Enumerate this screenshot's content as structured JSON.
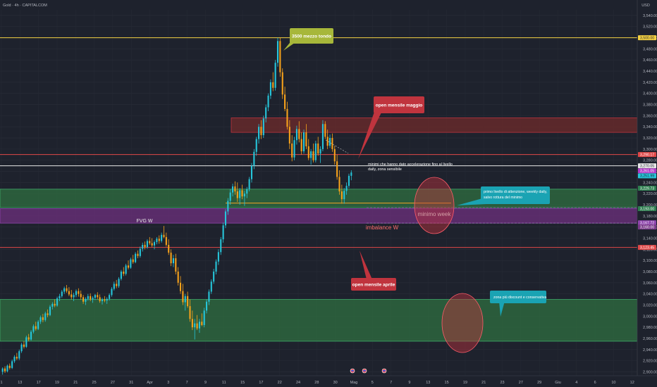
{
  "header": {
    "symbol": "Gold · 4h · CAPITALCOM",
    "currency": "USD"
  },
  "colors": {
    "background": "#1e222d",
    "up_candle": "#26c6da",
    "down_candle": "#f7a21b",
    "demand_zone": "#2e6b3f",
    "fvg_zone": "#6a2f7a",
    "supply_zone": "#6b2a2a",
    "yellow_level": "#f5d142",
    "red_level": "#e04848",
    "teal_callout": "#1aa3b3",
    "red_callout": "#c0343e",
    "olive_callout": "#a7b73a"
  },
  "chart_data": {
    "type": "candlestick",
    "symbol": "Gold",
    "timeframe": "4h",
    "y_axis": {
      "ticks": [
        3540,
        3520,
        3500,
        3480,
        3460,
        3440,
        3420,
        3400,
        3380,
        3360,
        3340,
        3320,
        3300,
        3280,
        3260,
        3240,
        3220,
        3200,
        3180,
        3160,
        3140,
        3120,
        3100,
        3080,
        3060,
        3040,
        3020,
        3000,
        2980,
        2960,
        2940,
        2920,
        2900
      ],
      "tick_labels": [
        "3,540.00",
        "3,520.00",
        "3,500.00",
        "3,480.00",
        "3,460.00",
        "3,440.00",
        "3,420.00",
        "3,400.00",
        "3,380.00",
        "3,360.00",
        "3,340.00",
        "3,320.00",
        "3,300.00",
        "3,280.00",
        "3,260.00",
        "3,240.00",
        "3,220.00",
        "3,200.00",
        "3,180.00",
        "3,160.00",
        "3,140.00",
        "3,120.00",
        "3,100.00",
        "3,080.00",
        "3,060.00",
        "3,040.00",
        "3,020.00",
        "3,000.00",
        "2,980.00",
        "2,960.00",
        "2,940.00",
        "2,920.00",
        "2,900.00"
      ],
      "range": [
        2893,
        3550
      ]
    },
    "x_axis": {
      "labels": [
        "1",
        "13",
        "17",
        "19",
        "21",
        "25",
        "27",
        "31",
        "Apr",
        "3",
        "7",
        "9",
        "11",
        "15",
        "17",
        "22",
        "24",
        "28",
        "30",
        "Mag",
        "5",
        "7",
        "9",
        "13",
        "15",
        "19",
        "21",
        "23",
        "27",
        "29",
        "Giu",
        "4",
        "6",
        "10",
        "12"
      ]
    },
    "price_labels": [
      {
        "value": 3500,
        "text": "3,500.00",
        "color": "#f5d142",
        "text_color": "#1e222d"
      },
      {
        "value": 3290.17,
        "text": "3,290.17",
        "color": "#e04848",
        "text_color": "#ffffff"
      },
      {
        "value": 3270.05,
        "text": "3,270.05",
        "color": "#e8e8e8",
        "text_color": "#1e222d"
      },
      {
        "value": 3261.05,
        "text": "3,261.05",
        "color": "#b23ac8",
        "text_color": "#ffffff"
      },
      {
        "value": 3251.99,
        "text": "3,251.99",
        "color": "#26c6da",
        "text_color": "#1e222d"
      },
      {
        "value": 3229.73,
        "text": "3,229.73",
        "color": "#2e7d4f",
        "text_color": "#ffffff"
      },
      {
        "value": 3193.0,
        "text": "3,193.00",
        "color": "#2e7d4f",
        "text_color": "#ffffff"
      },
      {
        "value": 3167.72,
        "text": "3,167.72",
        "color": "#8e44ad",
        "text_color": "#ffffff"
      },
      {
        "value": 3160.0,
        "text": "3,160.00",
        "color": "#7a3a8a",
        "text_color": "#ffffff"
      },
      {
        "value": 3123.45,
        "text": "3,123.45",
        "color": "#e04848",
        "text_color": "#ffffff"
      }
    ],
    "levels": [
      {
        "name": "3500 mezzo tondo",
        "value": 3500,
        "color": "#f5d142"
      },
      {
        "name": "open mensile maggio",
        "value": 3290.17,
        "color": "#e04848"
      },
      {
        "name": "white level",
        "value": 3270.05,
        "color": "#e8e8e8"
      },
      {
        "name": "minimo week",
        "value": 3203,
        "color": "#f5a623"
      },
      {
        "name": "open mensile aprile",
        "value": 3123.45,
        "color": "#e04848"
      }
    ],
    "zones": [
      {
        "name": "supply",
        "top": 3356,
        "bottom": 3330,
        "color": "#6b2a2a"
      },
      {
        "name": "weekly daily",
        "top": 3228,
        "bottom": 3195,
        "color": "#2e6b3f"
      },
      {
        "name": "FVG W",
        "top": 3193,
        "bottom": 3167,
        "color": "#6a2f7a"
      },
      {
        "name": "zona discount",
        "top": 3030,
        "bottom": 2955,
        "color": "#2e6b3f"
      }
    ],
    "candles": [
      [
        2900,
        2908,
        2895,
        2906
      ],
      [
        2906,
        2910,
        2898,
        2901
      ],
      [
        2901,
        2913,
        2899,
        2911
      ],
      [
        2911,
        2915,
        2904,
        2907
      ],
      [
        2907,
        2922,
        2905,
        2919
      ],
      [
        2919,
        2930,
        2916,
        2927
      ],
      [
        2927,
        2934,
        2921,
        2924
      ],
      [
        2924,
        2940,
        2921,
        2937
      ],
      [
        2937,
        2952,
        2934,
        2949
      ],
      [
        2949,
        2955,
        2942,
        2945
      ],
      [
        2945,
        2965,
        2943,
        2962
      ],
      [
        2962,
        2968,
        2955,
        2958
      ],
      [
        2958,
        2975,
        2956,
        2972
      ],
      [
        2972,
        2985,
        2969,
        2982
      ],
      [
        2982,
        2990,
        2974,
        2977
      ],
      [
        2977,
        2993,
        2975,
        2990
      ],
      [
        2990,
        3001,
        2986,
        2998
      ],
      [
        2998,
        3004,
        2989,
        2993
      ],
      [
        2993,
        3008,
        2990,
        3005
      ],
      [
        3005,
        3012,
        2998,
        3002
      ],
      [
        3002,
        3020,
        3000,
        3017
      ],
      [
        3017,
        3025,
        3012,
        3022
      ],
      [
        3022,
        3030,
        3016,
        3019
      ],
      [
        3019,
        3035,
        3017,
        3032
      ],
      [
        3032,
        3040,
        3027,
        3036
      ],
      [
        3036,
        3047,
        3033,
        3044
      ],
      [
        3044,
        3053,
        3040,
        3050
      ],
      [
        3050,
        3056,
        3042,
        3045
      ],
      [
        3045,
        3052,
        3036,
        3039
      ],
      [
        3039,
        3047,
        3030,
        3034
      ],
      [
        3034,
        3042,
        3027,
        3038
      ],
      [
        3038,
        3048,
        3034,
        3045
      ],
      [
        3045,
        3050,
        3035,
        3040
      ],
      [
        3040,
        3046,
        3030,
        3034
      ],
      [
        3034,
        3038,
        3022,
        3026
      ],
      [
        3026,
        3034,
        3020,
        3031
      ],
      [
        3031,
        3040,
        3028,
        3036
      ],
      [
        3036,
        3041,
        3027,
        3030
      ],
      [
        3030,
        3036,
        3024,
        3033
      ],
      [
        3033,
        3040,
        3029,
        3038
      ],
      [
        3038,
        3043,
        3030,
        3034
      ],
      [
        3034,
        3039,
        3024,
        3027
      ],
      [
        3027,
        3033,
        3021,
        3030
      ],
      [
        3030,
        3036,
        3025,
        3028
      ],
      [
        3028,
        3034,
        3022,
        3031
      ],
      [
        3031,
        3041,
        3028,
        3038
      ],
      [
        3038,
        3052,
        3035,
        3049
      ],
      [
        3049,
        3062,
        3046,
        3058
      ],
      [
        3058,
        3065,
        3050,
        3054
      ],
      [
        3054,
        3070,
        3051,
        3067
      ],
      [
        3067,
        3083,
        3064,
        3080
      ],
      [
        3080,
        3088,
        3072,
        3076
      ],
      [
        3076,
        3094,
        3073,
        3091
      ],
      [
        3091,
        3100,
        3084,
        3087
      ],
      [
        3087,
        3105,
        3085,
        3102
      ],
      [
        3102,
        3110,
        3094,
        3097
      ],
      [
        3097,
        3115,
        3095,
        3112
      ],
      [
        3112,
        3118,
        3104,
        3108
      ],
      [
        3108,
        3125,
        3105,
        3121
      ],
      [
        3121,
        3132,
        3116,
        3128
      ],
      [
        3128,
        3134,
        3120,
        3124
      ],
      [
        3124,
        3138,
        3121,
        3135
      ],
      [
        3135,
        3142,
        3128,
        3131
      ],
      [
        3131,
        3140,
        3124,
        3127
      ],
      [
        3127,
        3136,
        3120,
        3133
      ],
      [
        3133,
        3142,
        3129,
        3139
      ],
      [
        3139,
        3145,
        3130,
        3135
      ],
      [
        3135,
        3150,
        3132,
        3146
      ],
      [
        3146,
        3162,
        3140,
        3142
      ],
      [
        3142,
        3150,
        3125,
        3128
      ],
      [
        3128,
        3138,
        3110,
        3114
      ],
      [
        3114,
        3120,
        3090,
        3095
      ],
      [
        3095,
        3110,
        3088,
        3104
      ],
      [
        3104,
        3112,
        3075,
        3080
      ],
      [
        3080,
        3088,
        3055,
        3060
      ],
      [
        3060,
        3072,
        3040,
        3045
      ],
      [
        3045,
        3058,
        3020,
        3025
      ],
      [
        3025,
        3040,
        3010,
        3036
      ],
      [
        3036,
        3044,
        3015,
        3018
      ],
      [
        3018,
        3030,
        2990,
        2995
      ],
      [
        2995,
        3010,
        2975,
        2980
      ],
      [
        2980,
        2995,
        2958,
        2987
      ],
      [
        2987,
        3002,
        2975,
        2978
      ],
      [
        2978,
        2995,
        2970,
        2990
      ],
      [
        2990,
        3005,
        2982,
        2984
      ],
      [
        2984,
        3015,
        2980,
        3010
      ],
      [
        3010,
        3030,
        3005,
        3026
      ],
      [
        3026,
        3048,
        3020,
        3044
      ],
      [
        3044,
        3066,
        3040,
        3062
      ],
      [
        3062,
        3085,
        3058,
        3080
      ],
      [
        3080,
        3102,
        3075,
        3098
      ],
      [
        3098,
        3120,
        3092,
        3115
      ],
      [
        3115,
        3142,
        3110,
        3138
      ],
      [
        3138,
        3168,
        3132,
        3163
      ],
      [
        3163,
        3192,
        3158,
        3188
      ],
      [
        3188,
        3212,
        3182,
        3207
      ],
      [
        3207,
        3228,
        3200,
        3222
      ],
      [
        3222,
        3238,
        3215,
        3233
      ],
      [
        3233,
        3242,
        3218,
        3224
      ],
      [
        3224,
        3240,
        3205,
        3212
      ],
      [
        3212,
        3230,
        3200,
        3226
      ],
      [
        3226,
        3236,
        3210,
        3215
      ],
      [
        3215,
        3225,
        3198,
        3220
      ],
      [
        3220,
        3232,
        3212,
        3228
      ],
      [
        3228,
        3250,
        3224,
        3246
      ],
      [
        3246,
        3275,
        3240,
        3270
      ],
      [
        3270,
        3300,
        3264,
        3295
      ],
      [
        3295,
        3322,
        3288,
        3318
      ],
      [
        3318,
        3345,
        3310,
        3340
      ],
      [
        3340,
        3352,
        3318,
        3325
      ],
      [
        3325,
        3360,
        3320,
        3355
      ],
      [
        3355,
        3380,
        3348,
        3375
      ],
      [
        3375,
        3400,
        3368,
        3396
      ],
      [
        3396,
        3425,
        3390,
        3420
      ],
      [
        3420,
        3438,
        3404,
        3410
      ],
      [
        3410,
        3460,
        3405,
        3455
      ],
      [
        3455,
        3500,
        3448,
        3494
      ],
      [
        3494,
        3500,
        3430,
        3438
      ],
      [
        3438,
        3445,
        3390,
        3398
      ],
      [
        3398,
        3412,
        3368,
        3372
      ],
      [
        3372,
        3385,
        3335,
        3340
      ],
      [
        3340,
        3352,
        3300,
        3310
      ],
      [
        3310,
        3325,
        3278,
        3285
      ],
      [
        3285,
        3322,
        3280,
        3316
      ],
      [
        3316,
        3342,
        3308,
        3336
      ],
      [
        3336,
        3350,
        3312,
        3318
      ],
      [
        3318,
        3330,
        3290,
        3296
      ],
      [
        3296,
        3335,
        3292,
        3330
      ],
      [
        3330,
        3345,
        3300,
        3305
      ],
      [
        3305,
        3318,
        3280,
        3284
      ],
      [
        3284,
        3300,
        3272,
        3296
      ],
      [
        3296,
        3310,
        3276,
        3280
      ],
      [
        3280,
        3315,
        3276,
        3310
      ],
      [
        3310,
        3322,
        3288,
        3292
      ],
      [
        3292,
        3305,
        3275,
        3300
      ],
      [
        3300,
        3352,
        3296,
        3345
      ],
      [
        3345,
        3350,
        3318,
        3322
      ],
      [
        3322,
        3335,
        3300,
        3306
      ],
      [
        3306,
        3326,
        3302,
        3320
      ],
      [
        3320,
        3328,
        3295,
        3300
      ],
      [
        3300,
        3306,
        3272,
        3278
      ],
      [
        3278,
        3290,
        3245,
        3250
      ],
      [
        3250,
        3262,
        3218,
        3224
      ],
      [
        3224,
        3236,
        3202,
        3210
      ],
      [
        3210,
        3230,
        3202,
        3225
      ],
      [
        3225,
        3240,
        3218,
        3234
      ],
      [
        3234,
        3256,
        3230,
        3252
      ],
      [
        3252,
        3262,
        3244,
        3258
      ]
    ]
  },
  "annotations": {
    "fvg_label": "FVG W",
    "imbalance_label": "imbalance W",
    "minimo_label": "minimo week",
    "callout_3500": "3500 mezzo tondo",
    "callout_maggio": "open mensile  maggio",
    "callout_aprile": "open mensile aprile",
    "note_minimi_line1": "minimi che hanno dato accelerazione fino al livello",
    "note_minimi_line2": "daily, zona sensibile",
    "note_primo_line1": "primo livello di attenzione, weekly daily,",
    "note_primo_line2": "salvo rottura del minimo",
    "note_zona": "zona più discount e conservativa"
  }
}
